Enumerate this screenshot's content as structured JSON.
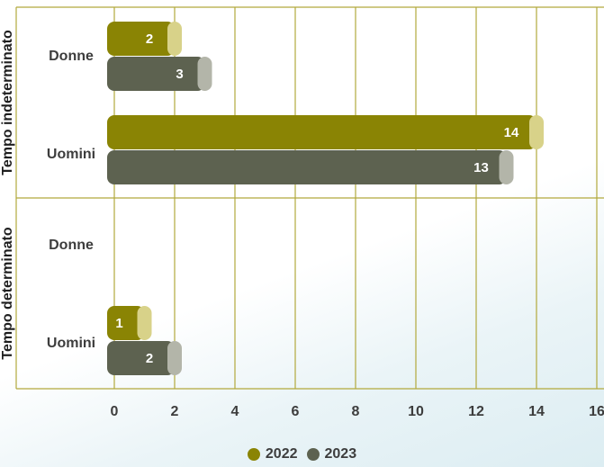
{
  "chart_data": {
    "type": "bar",
    "orientation": "horizontal",
    "xlim": [
      0,
      16
    ],
    "xticks": [
      0,
      2,
      4,
      6,
      8,
      10,
      12,
      14,
      16
    ],
    "grid": true,
    "legend_position": "bottom-center",
    "groups": [
      {
        "label": "Tempo indeterminato",
        "categories": [
          {
            "label": "Donne",
            "values": {
              "2022": 2,
              "2023": 3
            }
          },
          {
            "label": "Uomini",
            "values": {
              "2022": 14,
              "2023": 13
            }
          }
        ]
      },
      {
        "label": "Tempo determinato",
        "categories": [
          {
            "label": "Donne",
            "values": {
              "2022": null,
              "2023": null
            }
          },
          {
            "label": "Uomini",
            "values": {
              "2022": 1,
              "2023": 2
            }
          }
        ]
      }
    ],
    "series": [
      {
        "name": "2022",
        "color": "#8a8404",
        "cap_color": "#d8d289"
      },
      {
        "name": "2023",
        "color": "#5d6250",
        "cap_color": "#b3b5a9"
      }
    ]
  }
}
